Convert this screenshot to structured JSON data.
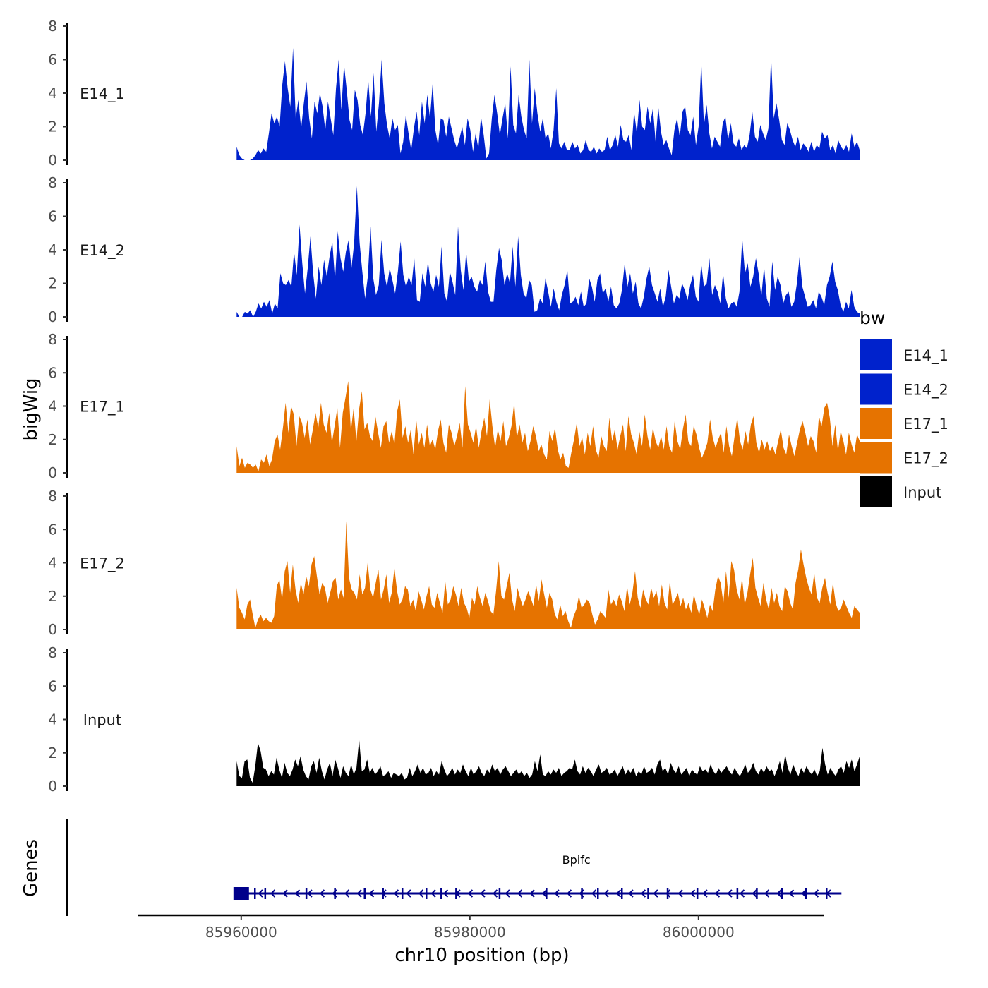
{
  "chart_data": {
    "type": "area",
    "title": "",
    "ylabel": "bigWig",
    "gene_panel_label": "Genes",
    "xlabel": "chr10 position (bp)",
    "xlim": [
      85951000,
      86011000
    ],
    "data_range": [
      85959600,
      86014100
    ],
    "ylim": [
      0,
      8
    ],
    "y_ticks": [
      "0",
      "2",
      "4",
      "6",
      "8"
    ],
    "x_ticks": [
      {
        "value": 85960000,
        "label": "85960000"
      },
      {
        "value": 85980000,
        "label": "85980000"
      },
      {
        "value": 86000000,
        "label": "86000000"
      }
    ],
    "legend": {
      "title": "bw",
      "position": "right",
      "items": [
        {
          "label": "E14_1",
          "color": "#0022CC"
        },
        {
          "label": "E14_2",
          "color": "#0022CC"
        },
        {
          "label": "E17_1",
          "color": "#E67300"
        },
        {
          "label": "E17_2",
          "color": "#E67300"
        },
        {
          "label": "Input",
          "color": "#000000"
        }
      ]
    },
    "series": [
      {
        "name": "E14_1",
        "color": "#0022CC",
        "values": [
          0.8,
          0.3,
          0.1,
          0.0,
          0.0,
          0.0,
          0.1,
          0.3,
          0.6,
          0.4,
          0.7,
          0.5,
          1.6,
          2.8,
          2.2,
          2.6,
          2.0,
          4.5,
          5.9,
          4.3,
          3.2,
          6.7,
          2.5,
          3.6,
          1.9,
          3.4,
          4.7,
          2.5,
          1.3,
          3.5,
          2.8,
          4.0,
          3.2,
          1.8,
          3.5,
          2.5,
          1.5,
          4.3,
          6.0,
          3.0,
          5.7,
          4.2,
          2.4,
          1.8,
          4.2,
          3.6,
          2.1,
          1.5,
          2.8,
          4.8,
          2.6,
          5.2,
          1.7,
          3.4,
          6.0,
          3.4,
          2.1,
          1.3,
          2.5,
          1.8,
          2.1,
          0.4,
          1.1,
          2.7,
          1.6,
          0.6,
          1.9,
          2.9,
          1.5,
          3.5,
          2.2,
          3.9,
          2.5,
          4.6,
          1.8,
          0.9,
          2.5,
          2.4,
          1.4,
          2.6,
          1.9,
          1.2,
          0.7,
          1.3,
          2.0,
          0.9,
          2.5,
          1.8,
          0.5,
          1.6,
          0.7,
          2.6,
          1.5,
          0.1,
          0.4,
          2.5,
          3.9,
          2.8,
          1.5,
          2.5,
          3.4,
          1.3,
          5.6,
          2.1,
          1.6,
          3.9,
          2.6,
          1.8,
          1.3,
          6.0,
          2.2,
          4.3,
          2.8,
          1.7,
          2.5,
          1.3,
          1.6,
          0.7,
          1.8,
          4.3,
          1.0,
          0.7,
          1.1,
          0.6,
          0.6,
          1.1,
          0.7,
          0.9,
          0.4,
          0.6,
          1.2,
          0.6,
          0.5,
          0.8,
          0.4,
          0.7,
          0.5,
          0.6,
          1.4,
          0.6,
          0.9,
          1.5,
          0.8,
          2.1,
          1.2,
          1.1,
          1.5,
          0.6,
          2.9,
          1.6,
          3.6,
          2.0,
          1.8,
          3.2,
          2.2,
          3.1,
          1.1,
          3.2,
          1.7,
          0.9,
          1.2,
          0.7,
          0.3,
          1.8,
          2.5,
          1.4,
          2.9,
          3.2,
          1.8,
          1.5,
          2.6,
          0.9,
          2.0,
          5.9,
          2.1,
          3.3,
          1.6,
          0.7,
          1.4,
          1.1,
          0.8,
          2.2,
          2.6,
          1.2,
          2.2,
          1.0,
          0.8,
          1.3,
          0.6,
          0.9,
          0.7,
          1.5,
          2.9,
          1.4,
          1.1,
          2.1,
          1.6,
          1.2,
          1.9,
          6.2,
          2.5,
          3.4,
          2.4,
          1.2,
          0.9,
          2.2,
          1.8,
          1.2,
          0.8,
          1.4,
          0.6,
          1.0,
          0.8,
          0.5,
          1.1,
          0.5,
          0.9,
          0.7,
          1.7,
          1.3,
          1.5,
          0.6,
          0.9,
          0.4,
          1.2,
          0.8,
          0.6,
          0.9,
          0.5,
          1.6,
          0.8,
          1.1,
          0.6
        ],
        "bp_note": "row ordering left-to-right, later values continue below"
      },
      {
        "name": "E14_2",
        "color": "#0022CC",
        "values": [
          0.3,
          0.0,
          0.0,
          0.3,
          0.2,
          0.4,
          0.0,
          0.3,
          0.8,
          0.5,
          0.9,
          0.6,
          1.0,
          0.2,
          0.8,
          0.5,
          2.6,
          2.0,
          1.9,
          2.2,
          1.8,
          3.9,
          2.5,
          5.5,
          3.2,
          1.4,
          2.9,
          4.8,
          2.6,
          1.1,
          3.0,
          1.9,
          3.4,
          2.4,
          3.6,
          4.5,
          2.2,
          5.1,
          3.5,
          2.7,
          3.9,
          4.6,
          2.9,
          4.4,
          7.8,
          4.4,
          2.7,
          1.1,
          2.4,
          5.4,
          2.3,
          1.3,
          1.9,
          4.6,
          2.6,
          1.8,
          2.9,
          2.2,
          1.4,
          2.7,
          4.5,
          2.5,
          1.8,
          2.4,
          1.9,
          3.5,
          1.0,
          0.9,
          2.6,
          1.8,
          3.3,
          2.0,
          1.5,
          2.5,
          1.8,
          4.2,
          1.4,
          0.9,
          2.7,
          2.1,
          1.3,
          5.4,
          2.8,
          1.6,
          3.9,
          2.1,
          2.4,
          1.8,
          1.5,
          2.2,
          1.9,
          3.3,
          1.5,
          0.9,
          0.9,
          2.8,
          4.1,
          3.4,
          1.9,
          2.6,
          2.0,
          4.2,
          1.8,
          4.8,
          2.5,
          1.4,
          1.1,
          2.2,
          1.9,
          0.3,
          0.4,
          1.1,
          0.8,
          2.3,
          1.5,
          0.6,
          1.7,
          0.9,
          0.4,
          1.3,
          1.9,
          2.8,
          0.8,
          0.9,
          1.2,
          0.7,
          1.5,
          0.6,
          0.8,
          2.3,
          1.8,
          0.9,
          2.2,
          2.6,
          1.4,
          1.7,
          0.9,
          1.8,
          0.7,
          0.5,
          0.8,
          1.6,
          3.2,
          1.8,
          2.6,
          1.4,
          2.1,
          0.8,
          0.5,
          1.2,
          2.3,
          3.0,
          1.9,
          1.4,
          0.9,
          1.7,
          0.6,
          1.2,
          2.8,
          1.8,
          0.8,
          1.3,
          1.1,
          2.0,
          1.6,
          1.0,
          1.9,
          2.5,
          1.2,
          0.9,
          3.2,
          1.8,
          2.0,
          3.5,
          1.3,
          1.9,
          1.5,
          0.8,
          2.6,
          1.1,
          0.5,
          0.8,
          0.9,
          0.6,
          1.5,
          4.7,
          2.6,
          3.2,
          1.8,
          2.4,
          3.5,
          2.6,
          1.2,
          3.0,
          1.1,
          0.6,
          3.3,
          1.6,
          2.4,
          1.9,
          0.8,
          1.3,
          1.5,
          0.6,
          0.9,
          2.0,
          3.6,
          1.8,
          1.2,
          0.6,
          0.7,
          1.0,
          0.5,
          1.5,
          1.2,
          0.7,
          1.9,
          2.4,
          3.3,
          2.1,
          1.6,
          0.7,
          0.3,
          0.9,
          0.5,
          1.6,
          0.6,
          0.3,
          0.2
        ]
      },
      {
        "name": "E17_1",
        "color": "#E67300",
        "values": [
          1.6,
          0.4,
          0.9,
          0.3,
          0.6,
          0.5,
          0.3,
          0.5,
          0.1,
          0.8,
          0.6,
          1.1,
          0.4,
          0.8,
          1.9,
          2.3,
          1.4,
          2.7,
          4.2,
          2.4,
          4.0,
          3.5,
          1.6,
          3.4,
          3.0,
          2.1,
          3.2,
          1.7,
          2.6,
          3.6,
          2.7,
          4.2,
          2.9,
          2.4,
          3.6,
          1.8,
          2.8,
          3.9,
          1.5,
          3.6,
          4.5,
          5.5,
          2.5,
          3.9,
          1.9,
          3.8,
          4.9,
          2.6,
          3.0,
          2.2,
          1.9,
          3.4,
          2.4,
          1.5,
          2.8,
          3.1,
          1.8,
          2.5,
          1.7,
          3.7,
          4.4,
          2.1,
          2.8,
          1.8,
          2.6,
          1.1,
          3.2,
          1.7,
          2.4,
          1.5,
          2.9,
          1.6,
          2.0,
          1.4,
          2.5,
          3.2,
          1.8,
          1.2,
          2.9,
          2.4,
          1.6,
          2.2,
          3.0,
          1.5,
          5.2,
          2.9,
          2.4,
          1.8,
          2.8,
          1.5,
          2.5,
          3.3,
          2.2,
          4.4,
          2.8,
          1.5,
          2.6,
          1.9,
          3.1,
          1.6,
          2.1,
          2.8,
          4.2,
          2.1,
          2.9,
          1.8,
          2.4,
          1.3,
          1.9,
          2.8,
          2.2,
          1.3,
          1.7,
          1.1,
          0.8,
          2.5,
          1.9,
          2.7,
          1.4,
          0.8,
          1.2,
          0.4,
          0.3,
          1.2,
          2.0,
          3.0,
          1.6,
          2.1,
          1.1,
          2.4,
          1.6,
          2.8,
          1.4,
          0.9,
          2.2,
          1.6,
          1.3,
          3.3,
          1.9,
          2.6,
          1.4,
          2.2,
          2.9,
          1.3,
          3.4,
          2.3,
          1.8,
          1.1,
          2.5,
          1.6,
          3.5,
          2.2,
          1.4,
          2.7,
          1.9,
          1.5,
          2.2,
          1.4,
          2.8,
          1.6,
          1.2,
          3.1,
          1.9,
          1.4,
          2.6,
          3.5,
          1.9,
          1.6,
          2.8,
          2.3,
          1.5,
          0.9,
          1.3,
          1.8,
          3.2,
          2.1,
          1.5,
          2.0,
          2.4,
          1.2,
          2.8,
          1.6,
          1.0,
          2.2,
          3.3,
          1.9,
          1.4,
          2.5,
          1.7,
          2.9,
          3.4,
          1.8,
          1.2,
          2.0,
          1.4,
          1.9,
          1.3,
          1.6,
          1.1,
          1.9,
          2.6,
          1.5,
          1.1,
          2.3,
          1.6,
          1.0,
          1.8,
          2.6,
          3.1,
          2.4,
          1.6,
          2.2,
          1.9,
          1.2,
          3.4,
          2.8,
          3.9,
          4.2,
          3.3,
          1.6,
          2.9,
          1.3,
          2.5,
          1.9,
          1.1,
          2.4,
          1.7,
          1.2,
          2.3,
          1.9
        ]
      },
      {
        "name": "E17_2",
        "color": "#E67300",
        "values": [
          2.5,
          1.3,
          1.0,
          0.6,
          1.5,
          1.8,
          0.9,
          0.1,
          0.6,
          0.9,
          0.5,
          0.7,
          0.5,
          0.4,
          0.8,
          2.6,
          3.0,
          1.8,
          3.5,
          4.1,
          2.2,
          3.9,
          2.4,
          1.6,
          2.8,
          2.1,
          3.2,
          2.6,
          3.9,
          4.4,
          3.2,
          2.1,
          2.8,
          2.5,
          1.6,
          2.2,
          2.9,
          3.1,
          1.8,
          2.4,
          1.9,
          6.5,
          3.1,
          2.4,
          2.2,
          1.8,
          3.3,
          2.1,
          2.5,
          4.0,
          2.4,
          1.9,
          2.8,
          3.6,
          1.8,
          2.4,
          3.3,
          1.6,
          2.2,
          3.7,
          2.3,
          1.5,
          1.8,
          2.6,
          2.4,
          1.4,
          1.8,
          1.1,
          2.3,
          1.8,
          1.2,
          2.0,
          2.6,
          1.5,
          1.3,
          2.2,
          1.6,
          1.0,
          2.9,
          1.5,
          1.8,
          2.6,
          2.1,
          1.4,
          2.5,
          1.6,
          1.3,
          0.7,
          1.9,
          1.5,
          2.6,
          1.9,
          1.4,
          2.2,
          1.7,
          1.1,
          0.9,
          2.3,
          4.1,
          2.0,
          1.8,
          2.6,
          3.4,
          1.8,
          1.1,
          2.5,
          1.9,
          1.4,
          1.8,
          2.3,
          1.9,
          1.4,
          2.7,
          1.7,
          3.0,
          2.1,
          1.3,
          2.2,
          1.8,
          0.9,
          0.6,
          1.5,
          0.8,
          1.1,
          0.5,
          0.1,
          0.8,
          1.2,
          2.0,
          1.3,
          1.5,
          1.8,
          1.6,
          0.9,
          0.3,
          0.6,
          1.1,
          0.9,
          0.7,
          2.4,
          1.5,
          1.8,
          1.4,
          2.1,
          1.7,
          1.1,
          2.6,
          1.5,
          2.2,
          3.5,
          1.9,
          1.3,
          2.4,
          1.8,
          1.5,
          2.5,
          1.9,
          2.3,
          1.4,
          2.7,
          1.6,
          1.2,
          2.9,
          1.5,
          1.8,
          2.2,
          1.4,
          1.9,
          1.2,
          1.6,
          1.0,
          2.1,
          1.4,
          0.9,
          1.8,
          1.3,
          0.7,
          1.5,
          1.1,
          2.4,
          3.2,
          2.8,
          1.6,
          3.5,
          1.9,
          4.1,
          3.6,
          2.4,
          1.8,
          3.1,
          1.5,
          2.2,
          3.3,
          4.3,
          2.5,
          1.9,
          1.4,
          2.8,
          1.8,
          1.2,
          2.5,
          1.6,
          2.2,
          1.4,
          1.1,
          2.6,
          2.3,
          1.6,
          1.2,
          2.8,
          3.6,
          4.8,
          3.9,
          3.1,
          2.5,
          2.1,
          3.4,
          1.9,
          1.6,
          2.5,
          3.1,
          2.2,
          1.5,
          2.8,
          1.6,
          1.1,
          1.3,
          1.8,
          1.4,
          1.0,
          0.7,
          1.4,
          1.2,
          1.0
        ]
      },
      {
        "name": "Input",
        "color": "#000000",
        "values": [
          1.5,
          0.6,
          0.5,
          1.5,
          1.6,
          0.5,
          0.2,
          1.2,
          2.6,
          2.1,
          1.1,
          1.0,
          0.6,
          0.9,
          0.7,
          1.7,
          1.0,
          0.5,
          1.4,
          0.8,
          0.6,
          1.0,
          1.6,
          1.2,
          1.8,
          1.0,
          0.6,
          0.4,
          1.2,
          1.5,
          0.8,
          1.7,
          0.9,
          0.4,
          1.0,
          1.4,
          0.6,
          1.6,
          1.1,
          0.5,
          1.2,
          0.8,
          0.6,
          1.3,
          0.7,
          1.1,
          2.8,
          0.9,
          1.0,
          1.6,
          0.8,
          1.1,
          0.7,
          0.9,
          1.2,
          0.6,
          0.7,
          0.9,
          0.5,
          0.8,
          0.7,
          0.6,
          0.8,
          0.4,
          0.5,
          1.1,
          0.6,
          0.9,
          1.3,
          0.8,
          1.1,
          0.7,
          0.8,
          1.1,
          0.6,
          0.9,
          0.7,
          1.5,
          1.0,
          0.6,
          0.8,
          1.1,
          0.7,
          1.0,
          0.8,
          1.3,
          0.9,
          0.6,
          1.1,
          0.7,
          0.9,
          1.2,
          0.8,
          0.6,
          1.0,
          0.8,
          1.3,
          0.9,
          1.1,
          0.7,
          1.0,
          1.2,
          0.9,
          0.6,
          0.8,
          1.0,
          0.7,
          0.9,
          0.6,
          0.8,
          0.5,
          0.7,
          1.5,
          0.9,
          1.9,
          0.7,
          0.6,
          0.9,
          0.7,
          1.0,
          0.8,
          1.1,
          0.6,
          0.8,
          0.9,
          1.1,
          1.0,
          1.6,
          0.9,
          0.7,
          1.2,
          0.8,
          1.1,
          0.9,
          0.6,
          1.0,
          1.3,
          0.8,
          0.9,
          1.1,
          0.7,
          0.8,
          1.0,
          0.6,
          0.9,
          1.2,
          0.7,
          1.0,
          0.8,
          1.1,
          0.6,
          0.9,
          0.7,
          1.2,
          0.8,
          0.9,
          1.1,
          0.7,
          1.3,
          1.6,
          0.9,
          1.1,
          0.7,
          1.4,
          1.0,
          0.8,
          1.2,
          0.7,
          0.9,
          1.1,
          0.6,
          1.0,
          0.8,
          0.7,
          1.2,
          0.9,
          1.0,
          0.8,
          1.3,
          0.9,
          0.7,
          1.1,
          0.8,
          1.0,
          1.2,
          0.9,
          0.7,
          1.1,
          0.8,
          0.6,
          0.9,
          1.3,
          0.8,
          1.0,
          1.4,
          0.9,
          0.7,
          1.1,
          0.8,
          1.2,
          0.9,
          1.0,
          0.6,
          1.0,
          1.5,
          0.8,
          1.9,
          1.1,
          0.7,
          1.3,
          0.9,
          0.6,
          1.1,
          0.8,
          1.2,
          0.9,
          0.7,
          1.0,
          0.6,
          0.9,
          2.3,
          1.3,
          0.7,
          1.1,
          0.8,
          0.6,
          1.0,
          1.2,
          0.8,
          1.5,
          1.1,
          1.6,
          0.9,
          1.3,
          1.8
        ]
      }
    ],
    "genes": [
      {
        "name": "Bpifc",
        "start": 85959700,
        "end": 86012500,
        "strand": "-",
        "color": "#00008B",
        "exons": [
          85960000,
          85961200,
          85962100,
          85965700,
          85968200,
          85970800,
          85972400,
          85974100,
          85976200,
          85977500,
          85978800,
          85982600,
          85986700,
          85989800,
          85991200,
          85993300,
          85995600,
          85997300,
          85999900,
          86003400,
          86005100,
          86007300,
          86009400,
          86011200
        ]
      }
    ]
  }
}
